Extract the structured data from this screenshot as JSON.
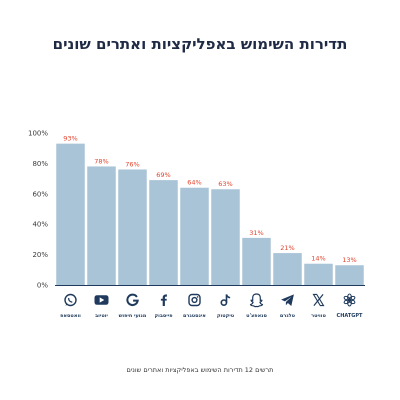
{
  "title": "תדירות השימוש באפליקציות ואתרים שונים",
  "caption": "תרשים 12 תדירות השימוש באפליקציות ואתרים שונים",
  "colors": {
    "bar": "#a9c4d6",
    "label": "#e2442f",
    "axis": "#1f3a5c",
    "icon": "#1f3a5c",
    "title": "#1f2a44"
  },
  "chart_data": {
    "type": "bar",
    "title": "תדירות השימוש באפליקציות ואתרים שונים",
    "categories": [
      "וואטסאפ",
      "יוטיוב",
      "מנועי חיפוש",
      "פייסבוק",
      "אינסטגרם",
      "טיקטוק",
      "סנאפצ'ט",
      "טלגרם",
      "טוויטר",
      "CHATGPT"
    ],
    "icons": [
      "whatsapp-icon",
      "youtube-icon",
      "google-icon",
      "facebook-icon",
      "instagram-icon",
      "tiktok-icon",
      "snapchat-icon",
      "telegram-icon",
      "x-icon",
      "chatgpt-icon"
    ],
    "values": [
      93,
      78,
      76,
      69,
      64,
      63,
      31,
      21,
      14,
      13
    ],
    "value_labels": [
      "93%",
      "78%",
      "76%",
      "69%",
      "64%",
      "63%",
      "31%",
      "21%",
      "14%",
      "13%"
    ],
    "yticks": [
      "0%",
      "20%",
      "40%",
      "60%",
      "80%",
      "100%"
    ],
    "ylim": [
      0,
      100
    ],
    "xlabel": "",
    "ylabel": "",
    "grid": false,
    "legend": "none"
  }
}
